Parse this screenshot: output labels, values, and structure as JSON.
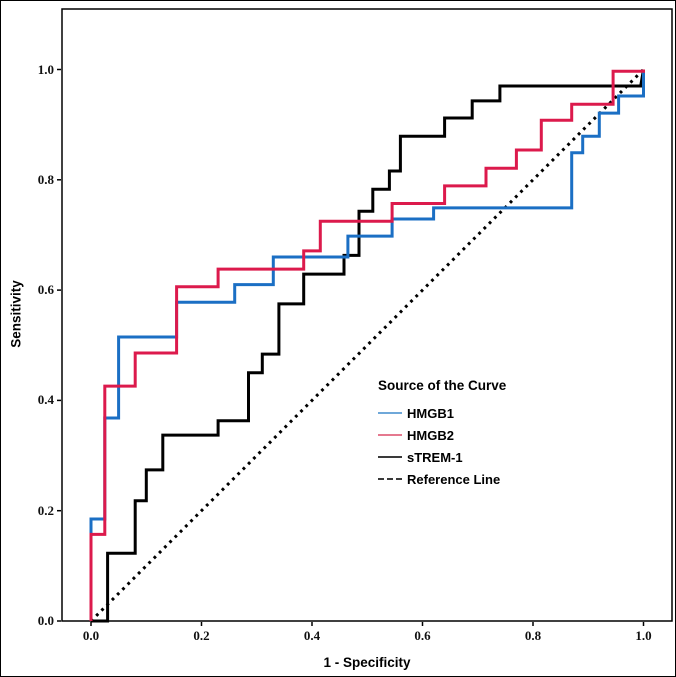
{
  "figure": {
    "background": "#ffffff",
    "outer_border_color": "#000000",
    "plot_frame_color": "#000000"
  },
  "axes": {
    "x": {
      "title": "1 - Specificity",
      "ticks": [
        "0.0",
        "0.2",
        "0.4",
        "0.6",
        "0.8",
        "1.0"
      ],
      "range": [
        0,
        1
      ]
    },
    "y": {
      "title": "Sensitivity",
      "ticks": [
        "0.0",
        "0.2",
        "0.4",
        "0.6",
        "0.8",
        "1.0"
      ],
      "range": [
        0,
        1
      ]
    }
  },
  "legend": {
    "title": "Source of the Curve",
    "items": [
      {
        "label": "HMGB1",
        "color": "#6fa8d9",
        "style": "solid"
      },
      {
        "label": "HMGB2",
        "color": "#e5798f",
        "style": "solid"
      },
      {
        "label": "sTREM-1",
        "color": "#3a3a3a",
        "style": "solid"
      },
      {
        "label": "Reference Line",
        "color": "#3a3a3a",
        "style": "dashed"
      }
    ]
  },
  "chart_data": {
    "type": "line",
    "subtype": "roc-step-curves",
    "title": "",
    "xlabel": "1 - Specificity",
    "ylabel": "Sensitivity",
    "xlim": [
      0,
      1
    ],
    "ylim": [
      0,
      1
    ],
    "grid": false,
    "legend_position": "inside-lower-right",
    "series": [
      {
        "name": "HMGB1",
        "color": "#1b6fc4",
        "width": 3,
        "style": "solid",
        "points": [
          [
            0,
            0
          ],
          [
            0,
            0.185
          ],
          [
            0.025,
            0.185
          ],
          [
            0.025,
            0.368
          ],
          [
            0.05,
            0.368
          ],
          [
            0.05,
            0.515
          ],
          [
            0.155,
            0.515
          ],
          [
            0.155,
            0.578
          ],
          [
            0.26,
            0.578
          ],
          [
            0.26,
            0.61
          ],
          [
            0.33,
            0.61
          ],
          [
            0.33,
            0.66
          ],
          [
            0.465,
            0.66
          ],
          [
            0.465,
            0.698
          ],
          [
            0.545,
            0.698
          ],
          [
            0.545,
            0.729
          ],
          [
            0.62,
            0.729
          ],
          [
            0.62,
            0.749
          ],
          [
            0.87,
            0.749
          ],
          [
            0.87,
            0.849
          ],
          [
            0.89,
            0.849
          ],
          [
            0.89,
            0.879
          ],
          [
            0.92,
            0.879
          ],
          [
            0.92,
            0.921
          ],
          [
            0.955,
            0.921
          ],
          [
            0.955,
            0.952
          ],
          [
            1,
            0.952
          ],
          [
            1,
            1
          ]
        ]
      },
      {
        "name": "HMGB2",
        "color": "#dc1a4c",
        "width": 3,
        "style": "solid",
        "points": [
          [
            0,
            0
          ],
          [
            0,
            0.157
          ],
          [
            0.025,
            0.157
          ],
          [
            0.025,
            0.426
          ],
          [
            0.08,
            0.426
          ],
          [
            0.08,
            0.486
          ],
          [
            0.155,
            0.486
          ],
          [
            0.155,
            0.606
          ],
          [
            0.23,
            0.606
          ],
          [
            0.23,
            0.638
          ],
          [
            0.385,
            0.638
          ],
          [
            0.385,
            0.671
          ],
          [
            0.415,
            0.671
          ],
          [
            0.415,
            0.725
          ],
          [
            0.545,
            0.725
          ],
          [
            0.545,
            0.757
          ],
          [
            0.64,
            0.757
          ],
          [
            0.64,
            0.789
          ],
          [
            0.715,
            0.789
          ],
          [
            0.715,
            0.821
          ],
          [
            0.77,
            0.821
          ],
          [
            0.77,
            0.854
          ],
          [
            0.815,
            0.854
          ],
          [
            0.815,
            0.908
          ],
          [
            0.87,
            0.908
          ],
          [
            0.87,
            0.937
          ],
          [
            0.945,
            0.937
          ],
          [
            0.945,
            0.997
          ],
          [
            1,
            0.997
          ],
          [
            1,
            1
          ]
        ]
      },
      {
        "name": "sTREM-1",
        "color": "#000000",
        "width": 3,
        "style": "solid",
        "points": [
          [
            0,
            0
          ],
          [
            0.03,
            0
          ],
          [
            0.03,
            0.123
          ],
          [
            0.08,
            0.123
          ],
          [
            0.08,
            0.218
          ],
          [
            0.1,
            0.218
          ],
          [
            0.1,
            0.274
          ],
          [
            0.13,
            0.274
          ],
          [
            0.13,
            0.337
          ],
          [
            0.23,
            0.337
          ],
          [
            0.23,
            0.363
          ],
          [
            0.285,
            0.363
          ],
          [
            0.285,
            0.45
          ],
          [
            0.31,
            0.45
          ],
          [
            0.31,
            0.484
          ],
          [
            0.34,
            0.484
          ],
          [
            0.34,
            0.575
          ],
          [
            0.385,
            0.575
          ],
          [
            0.385,
            0.629
          ],
          [
            0.458,
            0.629
          ],
          [
            0.458,
            0.663
          ],
          [
            0.485,
            0.663
          ],
          [
            0.485,
            0.743
          ],
          [
            0.51,
            0.743
          ],
          [
            0.51,
            0.783
          ],
          [
            0.54,
            0.783
          ],
          [
            0.54,
            0.816
          ],
          [
            0.56,
            0.816
          ],
          [
            0.56,
            0.879
          ],
          [
            0.64,
            0.879
          ],
          [
            0.64,
            0.912
          ],
          [
            0.69,
            0.912
          ],
          [
            0.69,
            0.943
          ],
          [
            0.74,
            0.943
          ],
          [
            0.74,
            0.97
          ],
          [
            0.995,
            0.97
          ],
          [
            1,
            1
          ]
        ]
      },
      {
        "name": "Reference Line",
        "color": "#000000",
        "width": 3,
        "style": "dotted",
        "points": [
          [
            0,
            0
          ],
          [
            1,
            1
          ]
        ]
      }
    ]
  }
}
